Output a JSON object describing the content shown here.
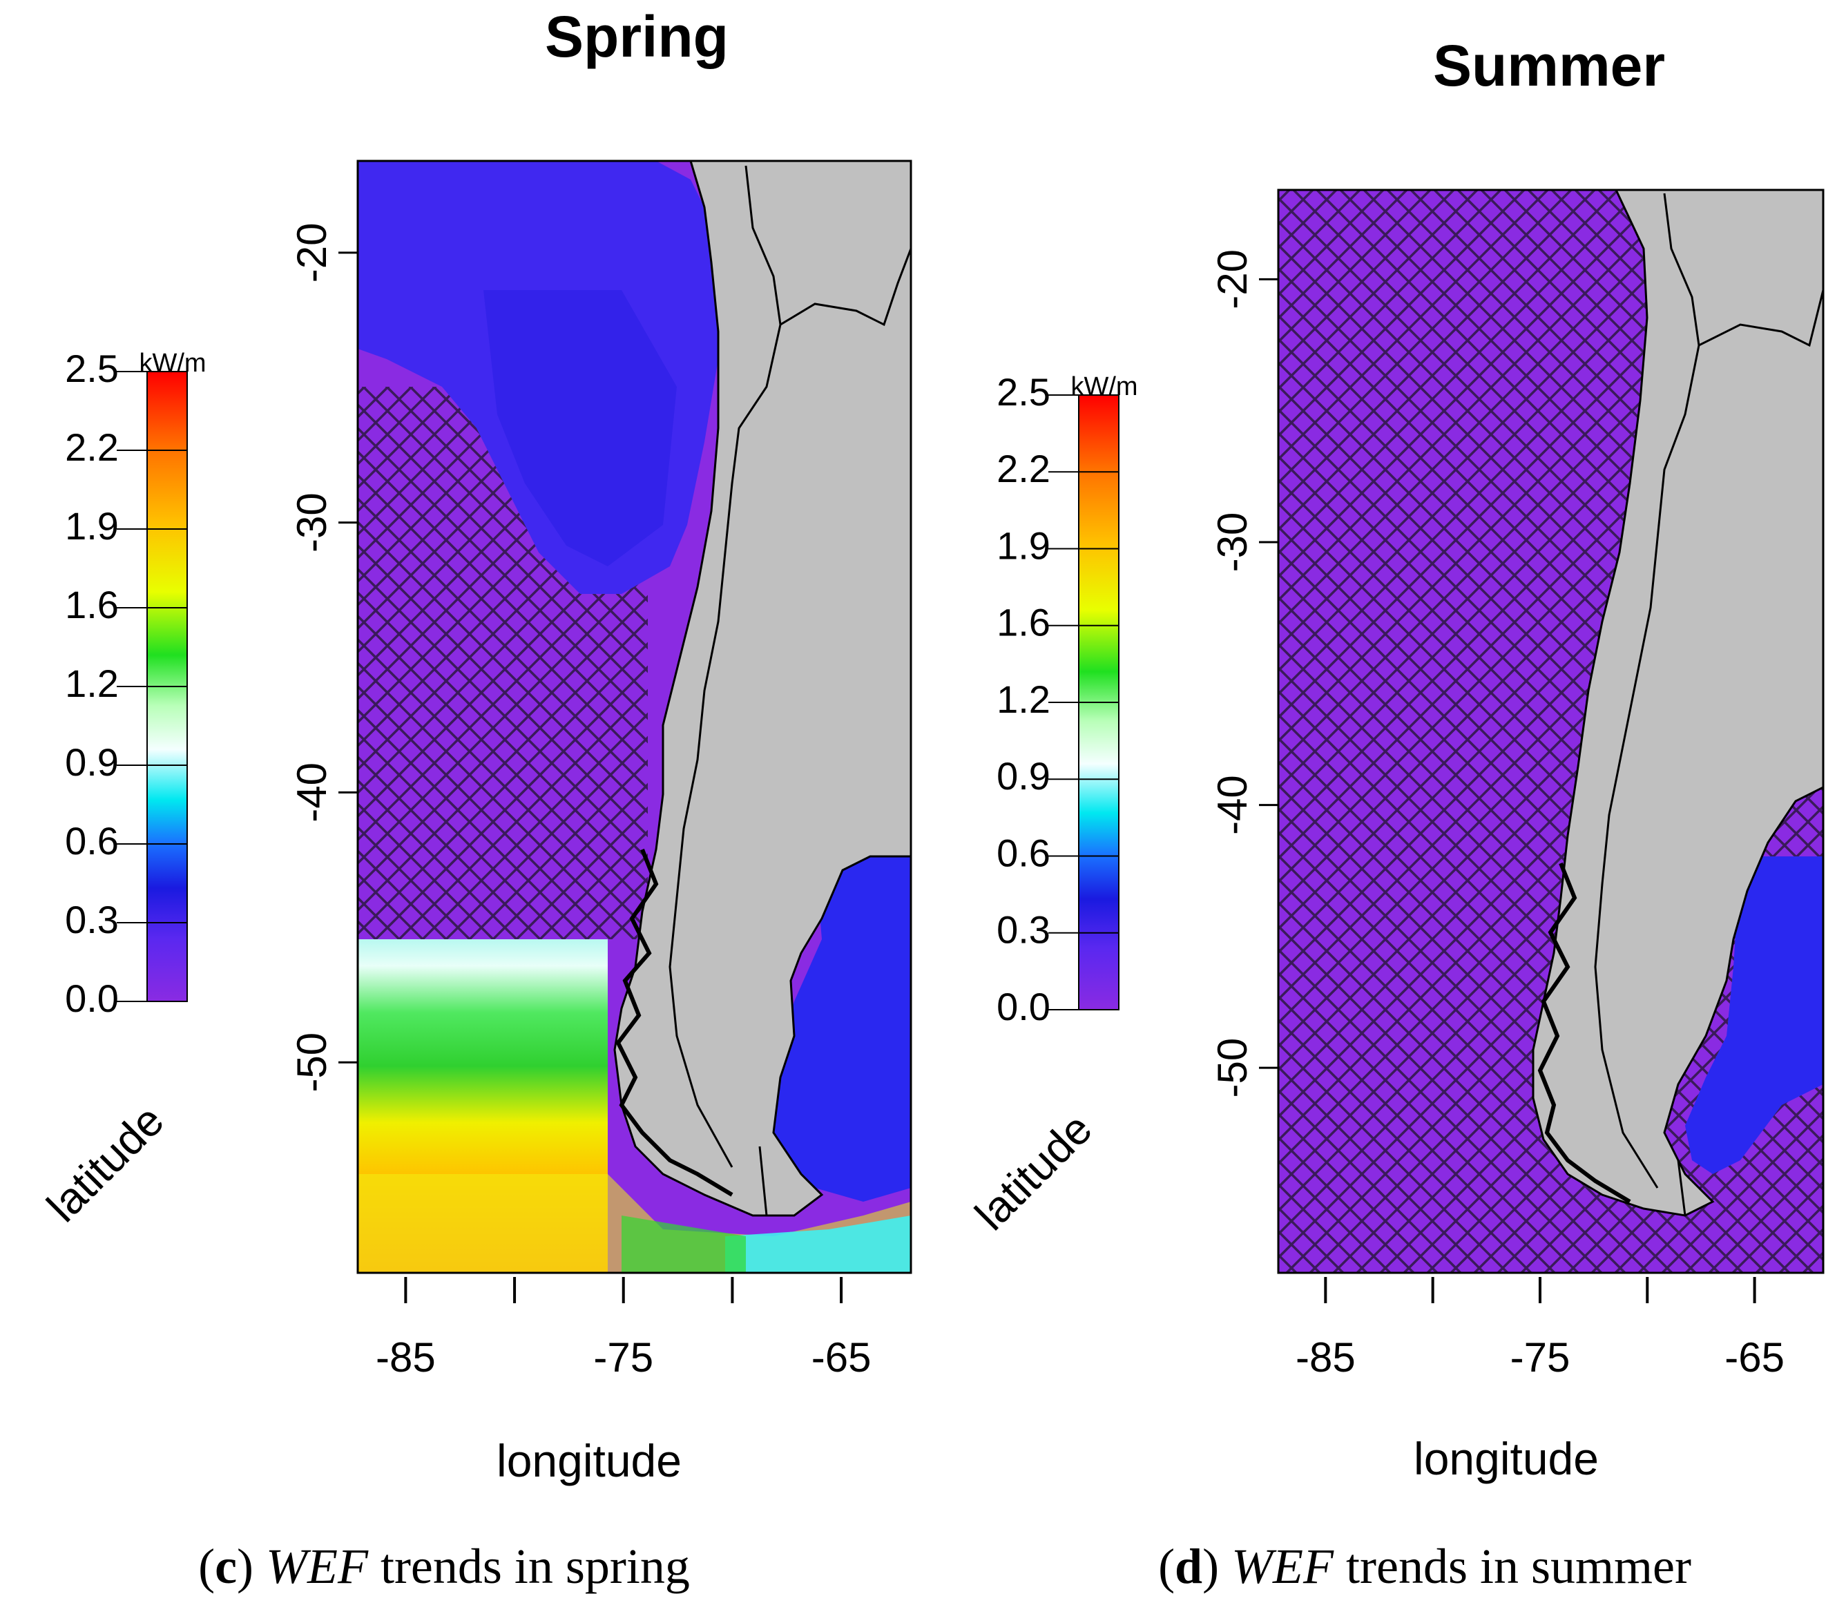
{
  "chart_data": [
    {
      "type": "heatmap",
      "title": "Spring",
      "xlabel": "longitude",
      "ylabel": "latitude",
      "x_ticks": [
        -85,
        -80,
        -75,
        -70,
        -65
      ],
      "x_tick_labels": [
        "-85",
        "-75",
        "-65"
      ],
      "y_ticks": [
        -20,
        -30,
        -40,
        -50
      ],
      "y_tick_labels": [
        "-20",
        "-30",
        "-40",
        "-50"
      ],
      "xlim": [
        -87.2,
        -61.8
      ],
      "ylim": [
        -57.8,
        -16.6
      ],
      "legend": {
        "unit": "kW/m",
        "ticks": [
          "0.0",
          "0.3",
          "0.6",
          "0.9",
          "1.2",
          "1.6",
          "1.9",
          "2.2",
          "2.5"
        ],
        "range": [
          0,
          2.5
        ],
        "placement": "left"
      },
      "regions": [
        {
          "description": "northern offshore",
          "lon": [
            -87,
            -73
          ],
          "lat": [
            -17,
            -35
          ],
          "wef_trend": 0.15
        },
        {
          "description": "central offshore, hatched",
          "lon": [
            -87,
            -74
          ],
          "lat": [
            -25,
            -46
          ],
          "wef_trend": 0.05,
          "hatched": true
        },
        {
          "description": "southern Pacific",
          "lon": [
            -87,
            -76
          ],
          "lat": [
            -46,
            -58
          ],
          "wef_trend_range": [
            0.8,
            2.1
          ]
        },
        {
          "description": "Atlantic shelf",
          "lon": [
            -68,
            -62
          ],
          "lat": [
            -43,
            -55
          ],
          "wef_trend": 0.2
        }
      ],
      "caption": {
        "letter": "c",
        "prefix": "(",
        "paren": ")",
        "italic": "WEF",
        "text": "trends in spring"
      }
    },
    {
      "type": "heatmap",
      "title": "Summer",
      "xlabel": "longitude",
      "ylabel": "latitude",
      "x_ticks": [
        -85,
        -80,
        -75,
        -70,
        -65
      ],
      "x_tick_labels": [
        "-85",
        "-75",
        "-65"
      ],
      "y_ticks": [
        -20,
        -30,
        -40,
        -50
      ],
      "y_tick_labels": [
        "-20",
        "-30",
        "-40",
        "-50"
      ],
      "xlim": [
        -87.2,
        -61.8
      ],
      "ylim": [
        -57.8,
        -16.6
      ],
      "legend": {
        "unit": "kW/m",
        "ticks": [
          "0.0",
          "0.3",
          "0.6",
          "0.9",
          "1.2",
          "1.6",
          "1.9",
          "2.2",
          "2.5"
        ],
        "range": [
          0,
          2.5
        ],
        "placement": "left"
      },
      "regions": [
        {
          "description": "Pacific offshore, hatched",
          "lon": [
            -87,
            -73
          ],
          "lat": [
            -17,
            -58
          ],
          "wef_trend": 0.05,
          "hatched": true
        },
        {
          "description": "Atlantic shelf",
          "lon": [
            -66,
            -62
          ],
          "lat": [
            -42,
            -54
          ],
          "wef_trend": 0.2
        }
      ],
      "caption": {
        "letter": "d",
        "prefix": "(",
        "paren": ")",
        "italic": "WEF",
        "text": "trends in summer"
      }
    }
  ],
  "colors": {
    "ocean_base": "#8a2be2",
    "land": "#c0c0c0",
    "hatch": "#3a1a5a",
    "blue_region": "#3a2cf0",
    "colorbar": [
      "#8a2be2",
      "#3a1ee8",
      "#1060ff",
      "#00e8f0",
      "#ffffff",
      "#80ff80",
      "#10e010",
      "#ffff00",
      "#ffa500",
      "#ff0000"
    ]
  }
}
